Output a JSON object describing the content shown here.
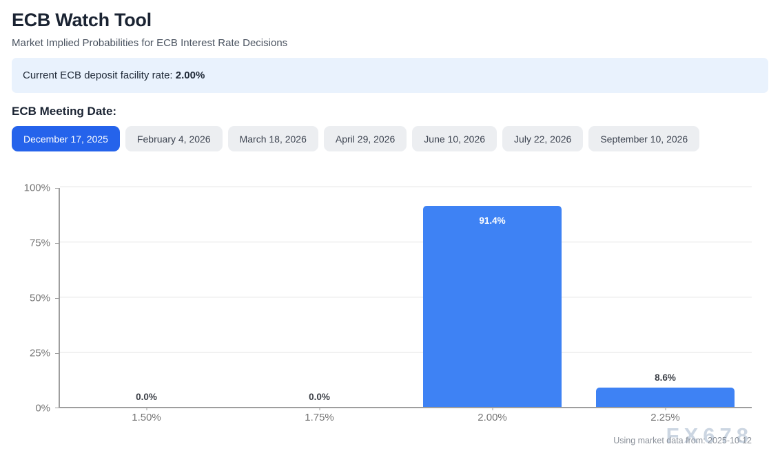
{
  "header": {
    "title": "ECB Watch Tool",
    "subtitle": "Market Implied Probabilities for ECB Interest Rate Decisions"
  },
  "info_banner": {
    "label": "Current ECB deposit facility rate:",
    "value": "2.00%"
  },
  "meeting_selector": {
    "heading": "ECB Meeting Date:",
    "options": [
      "December 17, 2025",
      "February 4, 2026",
      "March 18, 2026",
      "April 29, 2026",
      "June 10, 2026",
      "July 22, 2026",
      "September 10, 2026"
    ],
    "selected": "December 17, 2025"
  },
  "chart_data": {
    "type": "bar",
    "title": "",
    "xlabel": "",
    "ylabel": "",
    "categories": [
      "1.50%",
      "1.75%",
      "2.00%",
      "2.25%"
    ],
    "values": [
      0.0,
      0.0,
      91.4,
      8.6
    ],
    "value_labels": [
      "0.0%",
      "0.0%",
      "91.4%",
      "8.6%"
    ],
    "y_ticks": [
      0,
      25,
      50,
      75,
      100
    ],
    "y_tick_labels": [
      "0%",
      "25%",
      "50%",
      "75%",
      "100%"
    ],
    "ylim": [
      0,
      100
    ],
    "grid": true,
    "legend": false,
    "bar_color": "#3e82f4",
    "label_color_inside": "#ffffff",
    "label_color_outside": "#3b3f46"
  },
  "footer": {
    "source_note": "Using market data from: 2025-10-12",
    "watermark": "FX678"
  },
  "colors": {
    "accent": "#2563eb",
    "tab_inactive_bg": "#eceef1",
    "info_banner_bg": "#e9f2fd"
  }
}
